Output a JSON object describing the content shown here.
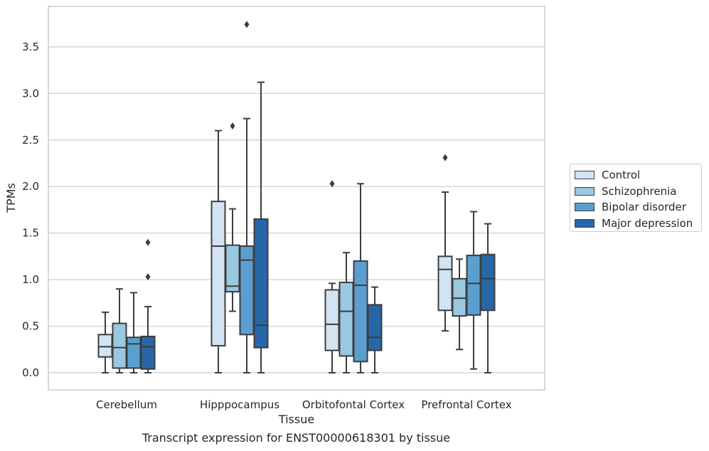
{
  "chart_data": {
    "type": "box",
    "title": "",
    "caption": "Transcript expression for ENST00000618301 by tissue",
    "xlabel": "Tissue",
    "ylabel": "TPMs",
    "ylim": [
      -0.18,
      3.95
    ],
    "yticks": [
      "0.0",
      "0.5",
      "1.0",
      "1.5",
      "2.0",
      "2.5",
      "3.0",
      "3.5"
    ],
    "grid": "horizontal",
    "legend_position": "right",
    "categories": [
      "Cerebellum",
      "Hipppocampus",
      "Orbitofontal Cortex",
      "Prefrontal Cortex"
    ],
    "series": [
      {
        "name": "Control",
        "color": "#d2e3f3",
        "boxes": [
          {
            "min": 0.0,
            "q1": 0.17,
            "median": 0.28,
            "q3": 0.41,
            "max": 0.65,
            "outliers": []
          },
          {
            "min": 0.0,
            "q1": 0.29,
            "median": 1.36,
            "q3": 1.84,
            "max": 2.6,
            "outliers": []
          },
          {
            "min": 0.0,
            "q1": 0.24,
            "median": 0.52,
            "q3": 0.89,
            "max": 0.96,
            "outliers": [
              2.03
            ]
          },
          {
            "min": 0.45,
            "q1": 0.67,
            "median": 1.11,
            "q3": 1.25,
            "max": 1.94,
            "outliers": [
              2.31
            ]
          }
        ]
      },
      {
        "name": "Schizophrenia",
        "color": "#9ac8e0",
        "boxes": [
          {
            "min": 0.0,
            "q1": 0.05,
            "median": 0.27,
            "q3": 0.53,
            "max": 0.9,
            "outliers": []
          },
          {
            "min": 0.66,
            "q1": 0.87,
            "median": 0.93,
            "q3": 1.37,
            "max": 1.76,
            "outliers": [
              2.65
            ]
          },
          {
            "min": 0.0,
            "q1": 0.18,
            "median": 0.66,
            "q3": 0.97,
            "max": 1.29,
            "outliers": []
          },
          {
            "min": 0.25,
            "q1": 0.61,
            "median": 0.8,
            "q3": 1.01,
            "max": 1.22,
            "outliers": []
          }
        ]
      },
      {
        "name": "Bipolar disorder",
        "color": "#5a9fcf",
        "boxes": [
          {
            "min": 0.0,
            "q1": 0.05,
            "median": 0.31,
            "q3": 0.38,
            "max": 0.86,
            "outliers": []
          },
          {
            "min": 0.0,
            "q1": 0.41,
            "median": 1.21,
            "q3": 1.36,
            "max": 2.73,
            "outliers": [
              3.74
            ]
          },
          {
            "min": 0.0,
            "q1": 0.12,
            "median": 0.94,
            "q3": 1.2,
            "max": 2.03,
            "outliers": []
          },
          {
            "min": 0.04,
            "q1": 0.62,
            "median": 0.96,
            "q3": 1.26,
            "max": 1.73,
            "outliers": []
          }
        ]
      },
      {
        "name": "Major depression",
        "color": "#2767a8",
        "boxes": [
          {
            "min": 0.0,
            "q1": 0.04,
            "median": 0.28,
            "q3": 0.39,
            "max": 0.71,
            "outliers": [
              1.03,
              1.4
            ]
          },
          {
            "min": 0.0,
            "q1": 0.27,
            "median": 0.51,
            "q3": 1.65,
            "max": 3.12,
            "outliers": []
          },
          {
            "min": 0.0,
            "q1": 0.24,
            "median": 0.38,
            "q3": 0.73,
            "max": 0.92,
            "outliers": []
          },
          {
            "min": 0.0,
            "q1": 0.67,
            "median": 1.01,
            "q3": 1.27,
            "max": 1.6,
            "outliers": []
          }
        ]
      }
    ]
  }
}
